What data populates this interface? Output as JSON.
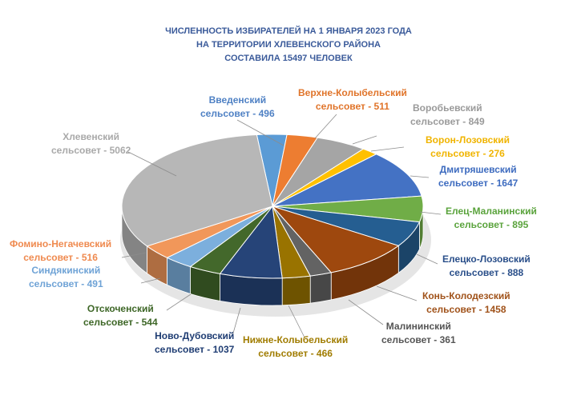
{
  "chart_data": {
    "type": "pie",
    "title_lines": [
      "ЧИСЛЕННОСТЬ ИЗБИРАТЕЛЕЙ НА 1 ЯНВАРЯ 2023 ГОДА",
      "НА ТЕРРИТОРИИ ХЛЕВЕНСКОГО РАЙОНА",
      "СОСТАВИЛА 15497 ЧЕЛОВЕК"
    ],
    "slices": [
      {
        "name": "Введенский",
        "value": 496,
        "label": "сельсовет - 496",
        "color": "#5b9bd5"
      },
      {
        "name": "Верхне-Колыбельский",
        "value": 511,
        "label": "сельсовет - 511",
        "color": "#ed7d31"
      },
      {
        "name": "Воробьевский",
        "value": 849,
        "label": "сельсовет - 849",
        "color": "#a5a5a5"
      },
      {
        "name": "Ворон-Лозовский",
        "value": 276,
        "label": "сельсовет - 276",
        "color": "#ffc000"
      },
      {
        "name": "Дмитряшевский",
        "value": 1647,
        "label": "сельсовет - 1647",
        "color": "#4472c4"
      },
      {
        "name": "Елец-Маланинский",
        "value": 895,
        "label": "сельсовет - 895",
        "color": "#70ad47"
      },
      {
        "name": "Елецко-Лозовский",
        "value": 888,
        "label": "сельсовет - 888",
        "color": "#255e91"
      },
      {
        "name": "Конь-Колодезский",
        "value": 1458,
        "label": "сельсовет - 1458",
        "color": "#9e480e"
      },
      {
        "name": "Малининский",
        "value": 361,
        "label": "сельсовет - 361",
        "color": "#636363"
      },
      {
        "name": "Нижне-Колыбельский",
        "value": 466,
        "label": "сельсовет - 466",
        "color": "#997300"
      },
      {
        "name": "Ново-Дубовский",
        "value": 1037,
        "label": "сельсовет - 1037",
        "color": "#264478"
      },
      {
        "name": "Отскоченский",
        "value": 544,
        "label": "сельсовет - 544",
        "color": "#43682b"
      },
      {
        "name": "Синдякинский",
        "value": 491,
        "label": "сельсовет - 491",
        "color": "#7cafdd"
      },
      {
        "name": "Фомино-Негачевский",
        "value": 516,
        "label": "сельсовет - 516",
        "color": "#f1975a"
      },
      {
        "name": "Хлевенский",
        "value": 5062,
        "label": "сельсовет - 5062",
        "color": "#b7b7b7"
      }
    ]
  }
}
